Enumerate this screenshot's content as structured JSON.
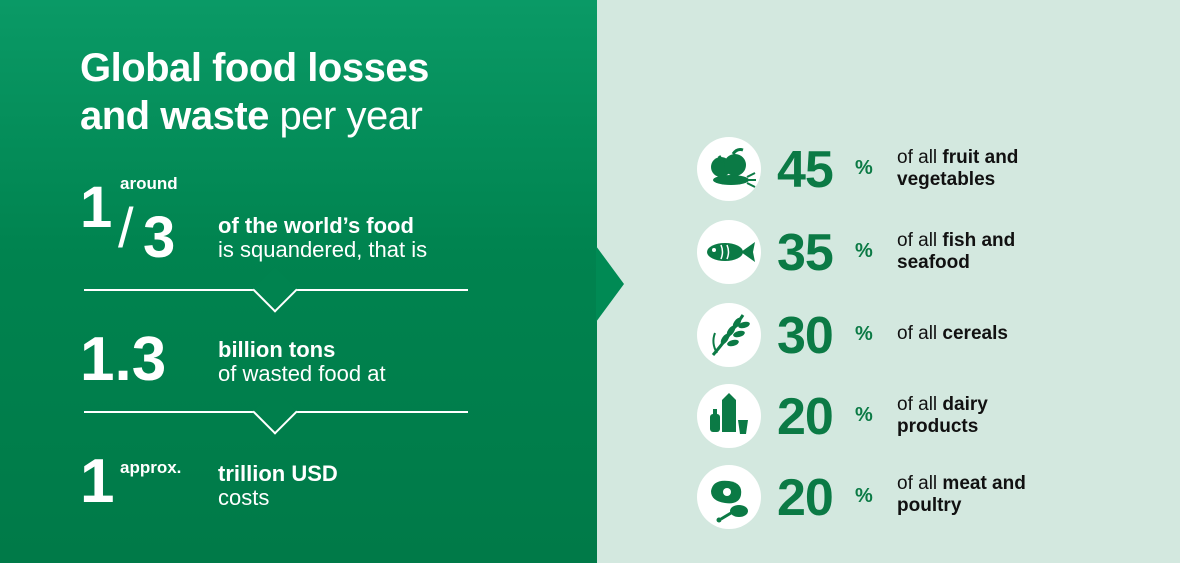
{
  "title": {
    "line1": "Global food losses",
    "line2_bold": "and waste",
    "line2_rest": " per year"
  },
  "stats": {
    "fraction": {
      "numerator": "1",
      "slash": "/",
      "denominator": "3",
      "qualifier": "around",
      "desc_bold": "of the world’s food",
      "desc_rest": "is squandered, that is"
    },
    "tons": {
      "value": "1.3",
      "desc_bold": "billion tons",
      "desc_rest": "of wasted food at"
    },
    "cost": {
      "value": "1",
      "qualifier": "approx.",
      "desc_bold": "trillion USD",
      "desc_rest": "costs"
    }
  },
  "categories": [
    {
      "icon": "fruit-vegetables-icon",
      "value": "45",
      "sign": "%",
      "pre": "of all ",
      "bold1": "fruit and",
      "bold2": "vegetables"
    },
    {
      "icon": "fish-icon",
      "value": "35",
      "sign": "%",
      "pre": "of all ",
      "bold1": "fish and",
      "bold2": "seafood"
    },
    {
      "icon": "wheat-icon",
      "value": "30",
      "sign": "%",
      "pre": "of all ",
      "bold1": "cereals",
      "bold2": ""
    },
    {
      "icon": "dairy-icon",
      "value": "20",
      "sign": "%",
      "pre": "of all ",
      "bold1": "dairy",
      "bold2": "products"
    },
    {
      "icon": "meat-poultry-icon",
      "value": "20",
      "sign": "%",
      "pre": "of all ",
      "bold1": "meat and",
      "bold2": "poultry"
    }
  ],
  "colors": {
    "left_panel": "#00834f",
    "right_panel": "#d3e8df",
    "accent_text": "#0b7a45"
  }
}
